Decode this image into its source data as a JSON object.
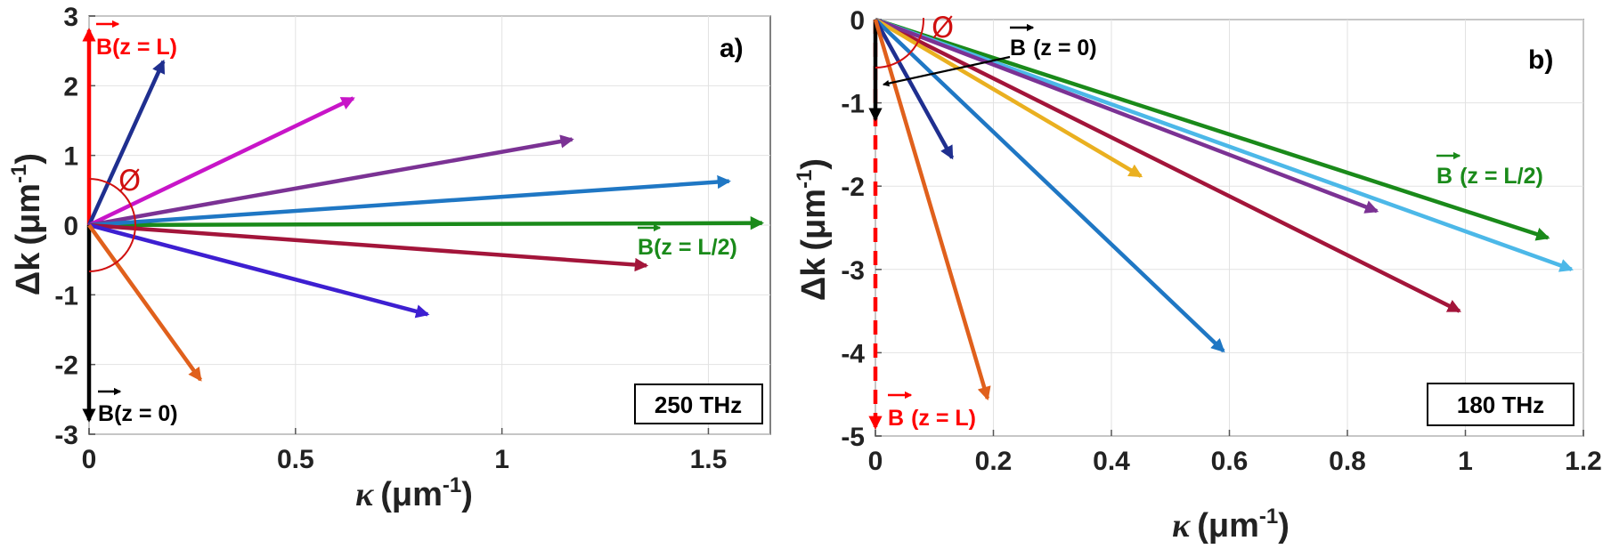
{
  "figure": {
    "phi_symbol": "Ø"
  },
  "chart_data": [
    {
      "type": "line",
      "panel": "a)",
      "frequency": "250 THz",
      "xlabel": {
        "symbol": "κ",
        "unit": "(μm",
        "exp": "-1",
        "close": ")"
      },
      "ylabel": {
        "symbol": "Δk",
        "unit": "(μm",
        "exp": "-1",
        "close": ")"
      },
      "xlim": [
        0,
        1.65
      ],
      "ylim": [
        -3,
        3
      ],
      "xticks": [
        0,
        0.5,
        1,
        1.5
      ],
      "xtick_labels": [
        "0",
        "0.5",
        "1",
        "1.5"
      ],
      "yticks": [
        -3,
        -2,
        -1,
        0,
        1,
        2,
        3
      ],
      "ytick_labels": [
        "-3",
        "-2",
        "-1",
        "0",
        "1",
        "2",
        "3"
      ],
      "grid": true,
      "series": [
        {
          "name": "B(z = L)",
          "color": "#ff0000",
          "x": [
            0,
            0
          ],
          "y": [
            0,
            2.8
          ]
        },
        {
          "name": "B(z = 0)",
          "color": "#000000",
          "x": [
            0,
            0
          ],
          "y": [
            0,
            -2.8
          ]
        },
        {
          "name": "B(z = L/2)",
          "color": "#1a8a1a",
          "x": [
            0,
            1.63
          ],
          "y": [
            0,
            0.03
          ]
        },
        {
          "name": "navy",
          "color": "#1f2f8f",
          "x": [
            0,
            0.18
          ],
          "y": [
            0,
            2.35
          ]
        },
        {
          "name": "magenta",
          "color": "#c815c8",
          "x": [
            0,
            0.64
          ],
          "y": [
            0,
            1.82
          ]
        },
        {
          "name": "purple",
          "color": "#7b3294",
          "x": [
            0,
            1.17
          ],
          "y": [
            0,
            1.23
          ]
        },
        {
          "name": "blue",
          "color": "#1f77c4",
          "x": [
            0,
            1.55
          ],
          "y": [
            0,
            0.63
          ]
        },
        {
          "name": "crimson",
          "color": "#a3153a",
          "x": [
            0,
            1.35
          ],
          "y": [
            0,
            -0.58
          ]
        },
        {
          "name": "violet",
          "color": "#3d1fd1",
          "x": [
            0,
            0.82
          ],
          "y": [
            0,
            -1.28
          ]
        },
        {
          "name": "orange",
          "color": "#e0601c",
          "x": [
            0,
            0.27
          ],
          "y": [
            0,
            -2.22
          ]
        }
      ],
      "annotations": {
        "top": {
          "letter": "B",
          "rest": "(z = L)",
          "color": "#ff0000"
        },
        "bottom": {
          "letter": "B",
          "rest": "(z = 0)",
          "color": "#000000"
        },
        "mid": {
          "letter": "B",
          "rest": "(z = L/2)",
          "color": "#1a8a1a"
        }
      }
    },
    {
      "type": "line",
      "panel": "b)",
      "frequency": "180 THz",
      "xlabel": {
        "symbol": "κ",
        "unit": "(μm",
        "exp": "-1",
        "close": ")"
      },
      "ylabel": {
        "symbol": "Δk",
        "unit": "(μm",
        "exp": "-1",
        "close": ")"
      },
      "xlim": [
        0,
        1.2
      ],
      "ylim": [
        -5,
        0
      ],
      "xticks": [
        0,
        0.2,
        0.4,
        0.6,
        0.8,
        1,
        1.2
      ],
      "xtick_labels": [
        "0",
        "0.2",
        "0.4",
        "0.6",
        "0.8",
        "1",
        "1.2"
      ],
      "yticks": [
        -5,
        -4,
        -3,
        -2,
        -1,
        0
      ],
      "ytick_labels": [
        "-5",
        "-4",
        "-3",
        "-2",
        "-1",
        "0"
      ],
      "grid": true,
      "series": [
        {
          "name": "B(z = L)",
          "color": "#ff0000",
          "x": [
            0,
            0
          ],
          "y": [
            0,
            -4.9
          ]
        },
        {
          "name": "B(z = 0)",
          "color": "#000000",
          "x": [
            0,
            0
          ],
          "y": [
            0,
            -1.2
          ]
        },
        {
          "name": "B(z = L/2)",
          "color": "#1a8a1a",
          "x": [
            0,
            1.14
          ],
          "y": [
            0,
            -2.62
          ]
        },
        {
          "name": "light blue",
          "color": "#4cb8e8",
          "x": [
            0,
            1.18
          ],
          "y": [
            0,
            -3.0
          ]
        },
        {
          "name": "crimson",
          "color": "#a3153a",
          "x": [
            0,
            0.99
          ],
          "y": [
            0,
            -3.5
          ]
        },
        {
          "name": "purple",
          "color": "#7b3294",
          "x": [
            0,
            0.85
          ],
          "y": [
            0,
            -2.3
          ]
        },
        {
          "name": "yellow",
          "color": "#eab020",
          "x": [
            0,
            0.45
          ],
          "y": [
            0,
            -1.88
          ]
        },
        {
          "name": "blue",
          "color": "#1f77c4",
          "x": [
            0,
            0.59
          ],
          "y": [
            0,
            -3.98
          ]
        },
        {
          "name": "navy",
          "color": "#1f2f8f",
          "x": [
            0,
            0.13
          ],
          "y": [
            0,
            -1.66
          ]
        },
        {
          "name": "orange",
          "color": "#e0601c",
          "x": [
            0,
            0.19
          ],
          "y": [
            0,
            -4.55
          ]
        }
      ],
      "annotations": {
        "top": {
          "letter": "B",
          "rest": "(z = 0)",
          "color": "#000000"
        },
        "bottom": {
          "letter": "B",
          "rest": "(z = L)",
          "color": "#ff0000"
        },
        "mid": {
          "letter": "B",
          "rest": "(z = L/2)",
          "color": "#1a8a1a"
        }
      }
    }
  ]
}
